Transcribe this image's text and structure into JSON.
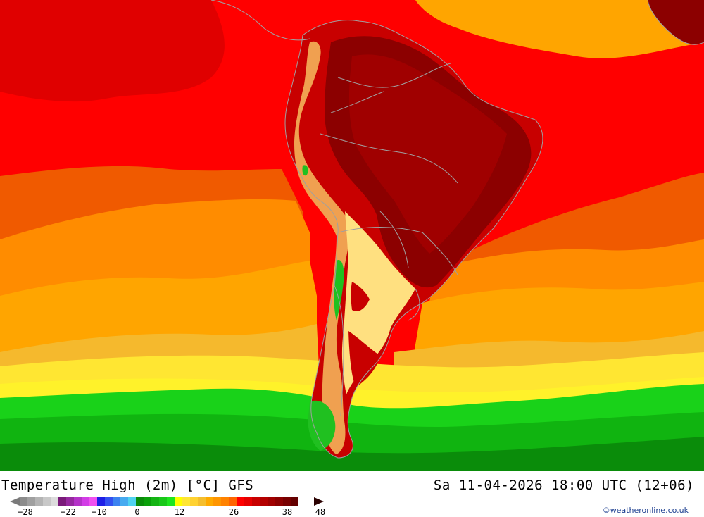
{
  "map": {
    "ocean_colors": {
      "deep_red": "#e00000",
      "red": "#ff0000",
      "dark_orange": "#f05a00",
      "orange": "#ff8c00",
      "light_orange": "#ffa500",
      "yellow_orange": "#f5b92d",
      "yellow": "#ffe632",
      "bright_yellow": "#fff22a",
      "green": "#19d219",
      "mid_green": "#10b410",
      "dark_green": "#0a8c0a"
    },
    "land_colors": {
      "hot": "#8c0000",
      "very_hot": "#a00000",
      "warm": "#c80000",
      "andes": "#f0a050",
      "cool": "#ffe080",
      "cold": "#20c020"
    },
    "border_color": "#a0a0a0"
  },
  "footer": {
    "title": "Temperature High (2m) [°C] GFS",
    "datetime": "Sa 11-04-2026 18:00 UTC (12+06)",
    "credit": "©weatheronline.co.uk"
  },
  "legend": {
    "swatches": [
      "#8c8c8c",
      "#a0a0a0",
      "#b4b4b4",
      "#c8c8c8",
      "#dcdcdc",
      "#7a1a7a",
      "#9628a0",
      "#b432c8",
      "#d23ce6",
      "#f050f0",
      "#1e1ee6",
      "#3250f0",
      "#3c82f0",
      "#46aaf0",
      "#50d2f0",
      "#0a8c0a",
      "#0aa00a",
      "#14b414",
      "#19c819",
      "#1ee61e",
      "#ffff00",
      "#ffe632",
      "#ffd232",
      "#f5be2d",
      "#ffaa00",
      "#ff9600",
      "#ff8200",
      "#ff6400",
      "#ff0000",
      "#e60000",
      "#c80000",
      "#b40000",
      "#a00000",
      "#8c0000",
      "#780000",
      "#640000"
    ],
    "ticks": [
      "-28",
      "-22",
      "-10",
      "0",
      "12",
      "26",
      "38",
      "48"
    ]
  }
}
